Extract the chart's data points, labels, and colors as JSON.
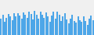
{
  "values": [
    60,
    75,
    50,
    65,
    78,
    70,
    55,
    80,
    68,
    82,
    72,
    60,
    85,
    76,
    64,
    88,
    78,
    57,
    90,
    74,
    62,
    88,
    76,
    63,
    83,
    68,
    48,
    73,
    86,
    60,
    88,
    76,
    52,
    68,
    82,
    58,
    42,
    62,
    74,
    52,
    46,
    68,
    55,
    48,
    70,
    52,
    38,
    60,
    72,
    55
  ],
  "bar_color": "#4da6e8",
  "background_color": "#f0f0f0",
  "ylim_min": 0,
  "ylim_max": 130
}
